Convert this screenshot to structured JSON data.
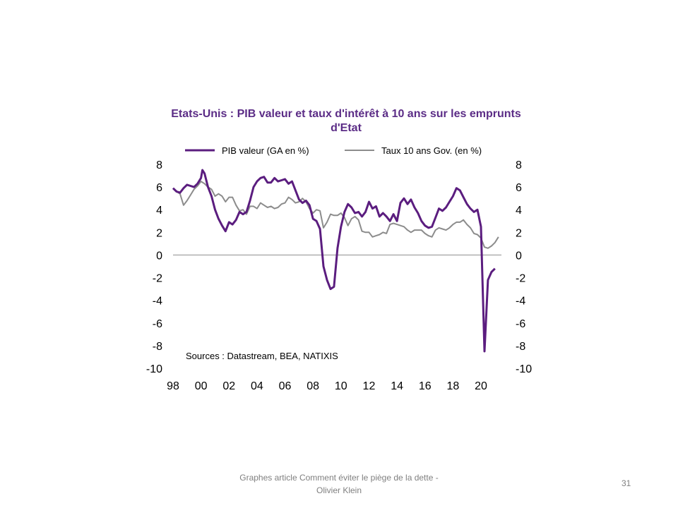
{
  "slide": {
    "footer": "Graphes article Comment  éviter le piège de la dette - Olivier Klein",
    "slide_number": "31"
  },
  "chart_data": {
    "type": "line",
    "title": "Etats-Unis : PIB valeur et taux d'intérêt à 10 ans sur les emprunts d'Etat",
    "xlabel": "",
    "ylabel": "",
    "ylim": [
      -10,
      8
    ],
    "xlim": [
      1998,
      2021.8
    ],
    "x_ticks": [
      "98",
      "00",
      "02",
      "04",
      "06",
      "08",
      "10",
      "12",
      "14",
      "16",
      "18",
      "20"
    ],
    "y_ticks": [
      8,
      6,
      4,
      2,
      0,
      -2,
      -4,
      -6,
      -8,
      -10
    ],
    "secondary_y_ticks": [
      8,
      6,
      4,
      2,
      0,
      -2,
      -4,
      -6,
      -8,
      -10
    ],
    "grid": false,
    "legend_position": "top",
    "annotation": "Sources : Datastream, BEA, NATIXIS",
    "colors": {
      "pib": "#5b1d7f",
      "taux": "#8c8c8c",
      "zero_line": "#9a9a9a"
    },
    "series": [
      {
        "name": "PIB valeur (GA en %)",
        "points": [
          [
            1998.0,
            5.9
          ],
          [
            1998.25,
            5.6
          ],
          [
            1998.5,
            5.5
          ],
          [
            1998.75,
            5.9
          ],
          [
            1999.0,
            6.2
          ],
          [
            1999.25,
            6.1
          ],
          [
            1999.5,
            6.0
          ],
          [
            1999.75,
            6.3
          ],
          [
            2000.0,
            6.8
          ],
          [
            2000.1,
            7.5
          ],
          [
            2000.25,
            7.2
          ],
          [
            2000.5,
            6.0
          ],
          [
            2000.75,
            5.2
          ],
          [
            2001.0,
            4.0
          ],
          [
            2001.25,
            3.2
          ],
          [
            2001.5,
            2.6
          ],
          [
            2001.75,
            2.1
          ],
          [
            2002.0,
            2.9
          ],
          [
            2002.25,
            2.7
          ],
          [
            2002.5,
            3.1
          ],
          [
            2002.75,
            3.8
          ],
          [
            2003.0,
            3.6
          ],
          [
            2003.25,
            3.8
          ],
          [
            2003.5,
            4.8
          ],
          [
            2003.75,
            6.0
          ],
          [
            2004.0,
            6.5
          ],
          [
            2004.25,
            6.8
          ],
          [
            2004.5,
            6.9
          ],
          [
            2004.75,
            6.4
          ],
          [
            2005.0,
            6.4
          ],
          [
            2005.25,
            6.8
          ],
          [
            2005.5,
            6.5
          ],
          [
            2005.75,
            6.6
          ],
          [
            2006.0,
            6.7
          ],
          [
            2006.25,
            6.3
          ],
          [
            2006.5,
            6.5
          ],
          [
            2006.75,
            5.7
          ],
          [
            2007.0,
            4.9
          ],
          [
            2007.25,
            4.6
          ],
          [
            2007.5,
            4.8
          ],
          [
            2007.75,
            4.4
          ],
          [
            2008.0,
            3.2
          ],
          [
            2008.25,
            3.0
          ],
          [
            2008.5,
            2.3
          ],
          [
            2008.75,
            -1.0
          ],
          [
            2009.0,
            -2.2
          ],
          [
            2009.25,
            -3.0
          ],
          [
            2009.5,
            -2.8
          ],
          [
            2009.75,
            0.6
          ],
          [
            2010.0,
            2.5
          ],
          [
            2010.25,
            3.8
          ],
          [
            2010.5,
            4.5
          ],
          [
            2010.75,
            4.2
          ],
          [
            2011.0,
            3.7
          ],
          [
            2011.25,
            3.8
          ],
          [
            2011.5,
            3.4
          ],
          [
            2011.75,
            3.8
          ],
          [
            2012.0,
            4.7
          ],
          [
            2012.25,
            4.1
          ],
          [
            2012.5,
            4.3
          ],
          [
            2012.75,
            3.4
          ],
          [
            2013.0,
            3.7
          ],
          [
            2013.25,
            3.4
          ],
          [
            2013.5,
            3.0
          ],
          [
            2013.75,
            3.6
          ],
          [
            2014.0,
            3.0
          ],
          [
            2014.25,
            4.6
          ],
          [
            2014.5,
            5.0
          ],
          [
            2014.75,
            4.5
          ],
          [
            2015.0,
            4.9
          ],
          [
            2015.25,
            4.2
          ],
          [
            2015.5,
            3.7
          ],
          [
            2015.75,
            3.0
          ],
          [
            2016.0,
            2.6
          ],
          [
            2016.25,
            2.4
          ],
          [
            2016.5,
            2.5
          ],
          [
            2016.75,
            3.3
          ],
          [
            2017.0,
            4.1
          ],
          [
            2017.25,
            3.9
          ],
          [
            2017.5,
            4.2
          ],
          [
            2017.75,
            4.7
          ],
          [
            2018.0,
            5.2
          ],
          [
            2018.25,
            5.9
          ],
          [
            2018.5,
            5.7
          ],
          [
            2018.75,
            5.1
          ],
          [
            2019.0,
            4.5
          ],
          [
            2019.25,
            4.1
          ],
          [
            2019.5,
            3.8
          ],
          [
            2019.75,
            4.0
          ],
          [
            2020.0,
            2.5
          ],
          [
            2020.25,
            -8.5
          ],
          [
            2020.5,
            -2.2
          ],
          [
            2020.75,
            -1.5
          ],
          [
            2021.0,
            -1.2
          ]
        ]
      },
      {
        "name": "Taux 10 ans Gov. (en %)",
        "points": [
          [
            1998.0,
            5.9
          ],
          [
            1998.25,
            5.6
          ],
          [
            1998.5,
            5.4
          ],
          [
            1998.75,
            4.4
          ],
          [
            1999.0,
            4.8
          ],
          [
            1999.25,
            5.3
          ],
          [
            1999.5,
            5.8
          ],
          [
            1999.75,
            6.1
          ],
          [
            2000.0,
            6.5
          ],
          [
            2000.25,
            6.3
          ],
          [
            2000.5,
            6.0
          ],
          [
            2000.75,
            5.8
          ],
          [
            2001.0,
            5.2
          ],
          [
            2001.25,
            5.4
          ],
          [
            2001.5,
            5.2
          ],
          [
            2001.75,
            4.7
          ],
          [
            2002.0,
            5.1
          ],
          [
            2002.25,
            5.1
          ],
          [
            2002.5,
            4.4
          ],
          [
            2002.75,
            3.9
          ],
          [
            2003.0,
            4.0
          ],
          [
            2003.25,
            3.6
          ],
          [
            2003.5,
            4.3
          ],
          [
            2003.75,
            4.3
          ],
          [
            2004.0,
            4.1
          ],
          [
            2004.25,
            4.6
          ],
          [
            2004.5,
            4.4
          ],
          [
            2004.75,
            4.2
          ],
          [
            2005.0,
            4.3
          ],
          [
            2005.25,
            4.1
          ],
          [
            2005.5,
            4.2
          ],
          [
            2005.75,
            4.5
          ],
          [
            2006.0,
            4.6
          ],
          [
            2006.25,
            5.1
          ],
          [
            2006.5,
            4.9
          ],
          [
            2006.75,
            4.6
          ],
          [
            2007.0,
            4.7
          ],
          [
            2007.25,
            5.0
          ],
          [
            2007.5,
            4.7
          ],
          [
            2007.75,
            4.1
          ],
          [
            2008.0,
            3.7
          ],
          [
            2008.25,
            4.0
          ],
          [
            2008.5,
            3.9
          ],
          [
            2008.75,
            2.4
          ],
          [
            2009.0,
            2.9
          ],
          [
            2009.25,
            3.6
          ],
          [
            2009.5,
            3.5
          ],
          [
            2009.75,
            3.5
          ],
          [
            2010.0,
            3.7
          ],
          [
            2010.25,
            3.3
          ],
          [
            2010.5,
            2.6
          ],
          [
            2010.75,
            3.2
          ],
          [
            2011.0,
            3.4
          ],
          [
            2011.25,
            3.1
          ],
          [
            2011.5,
            2.1
          ],
          [
            2011.75,
            2.0
          ],
          [
            2012.0,
            2.0
          ],
          [
            2012.25,
            1.6
          ],
          [
            2012.5,
            1.7
          ],
          [
            2012.75,
            1.8
          ],
          [
            2013.0,
            2.0
          ],
          [
            2013.25,
            1.9
          ],
          [
            2013.5,
            2.7
          ],
          [
            2013.75,
            2.8
          ],
          [
            2014.0,
            2.7
          ],
          [
            2014.25,
            2.6
          ],
          [
            2014.5,
            2.5
          ],
          [
            2014.75,
            2.2
          ],
          [
            2015.0,
            2.0
          ],
          [
            2015.25,
            2.2
          ],
          [
            2015.5,
            2.2
          ],
          [
            2015.75,
            2.2
          ],
          [
            2016.0,
            1.9
          ],
          [
            2016.25,
            1.7
          ],
          [
            2016.5,
            1.6
          ],
          [
            2016.75,
            2.2
          ],
          [
            2017.0,
            2.4
          ],
          [
            2017.25,
            2.3
          ],
          [
            2017.5,
            2.2
          ],
          [
            2017.75,
            2.4
          ],
          [
            2018.0,
            2.7
          ],
          [
            2018.25,
            2.9
          ],
          [
            2018.5,
            2.9
          ],
          [
            2018.75,
            3.1
          ],
          [
            2019.0,
            2.7
          ],
          [
            2019.25,
            2.4
          ],
          [
            2019.5,
            1.9
          ],
          [
            2019.75,
            1.8
          ],
          [
            2020.0,
            1.5
          ],
          [
            2020.25,
            0.7
          ],
          [
            2020.5,
            0.6
          ],
          [
            2020.75,
            0.8
          ],
          [
            2021.0,
            1.1
          ],
          [
            2021.25,
            1.6
          ]
        ]
      }
    ]
  }
}
